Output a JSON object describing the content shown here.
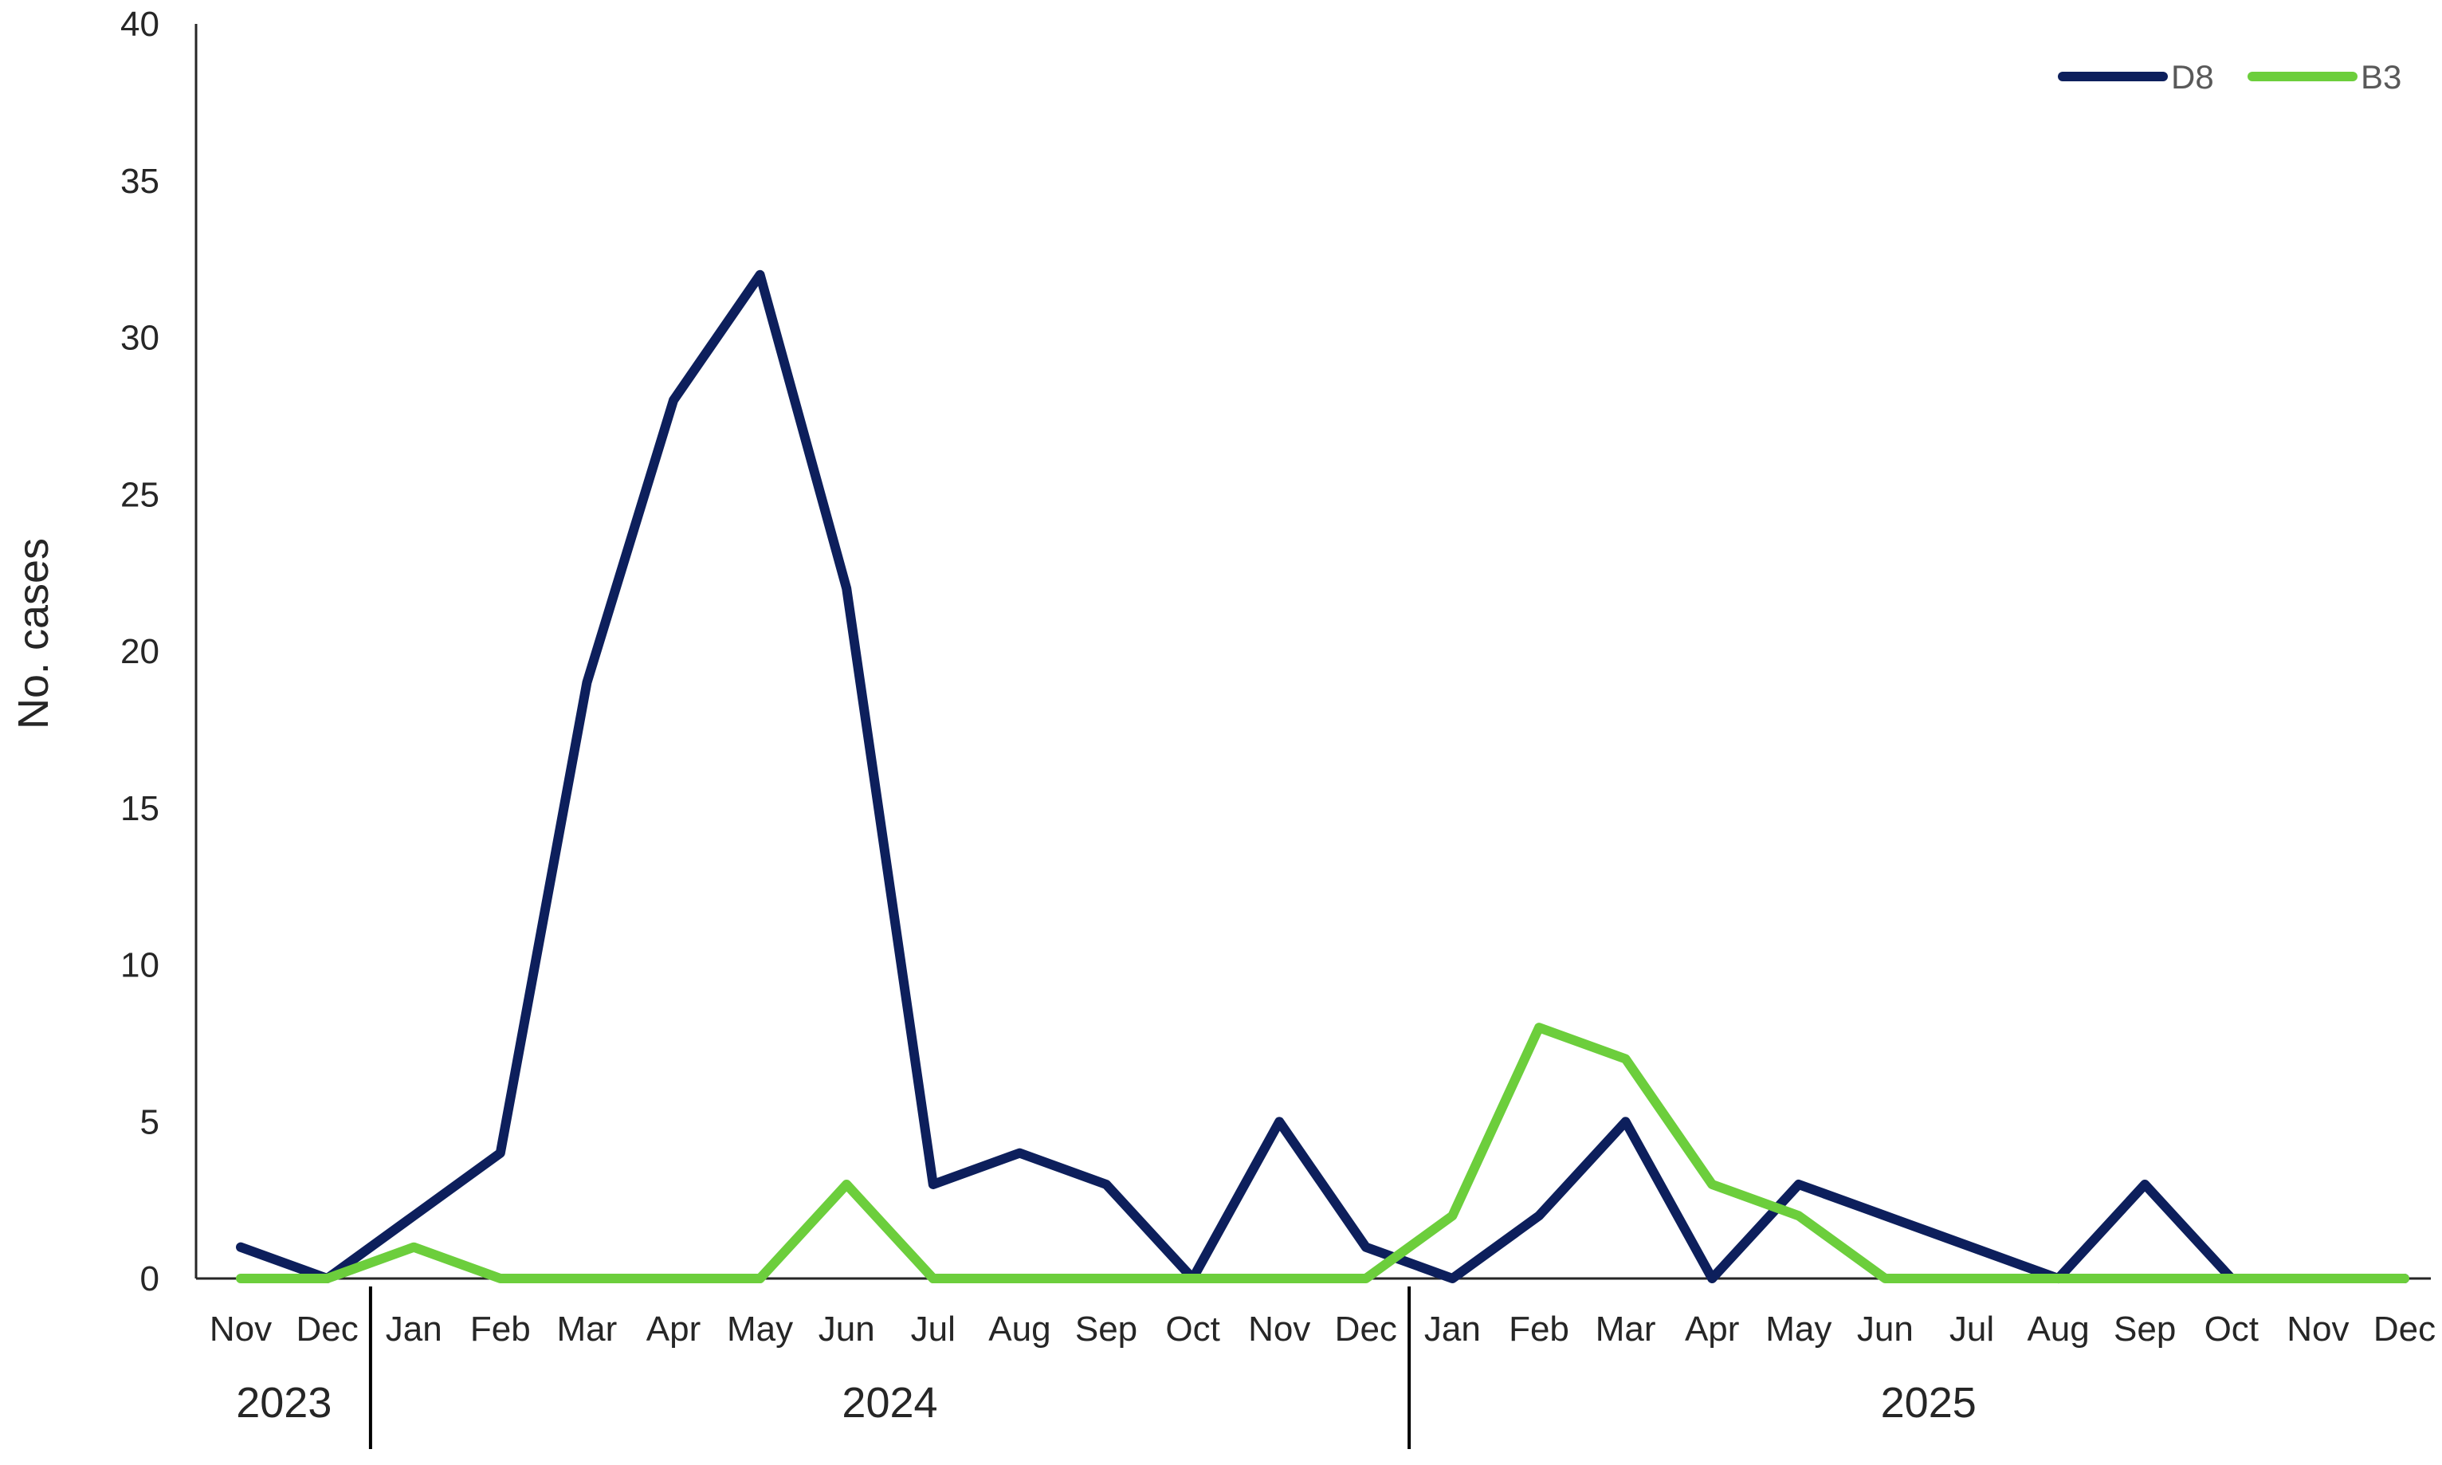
{
  "chart_data": {
    "type": "line",
    "title": "",
    "xlabel": "",
    "ylabel": "No. cases",
    "ylim": [
      0,
      40
    ],
    "yticks": [
      0,
      5,
      10,
      15,
      20,
      25,
      30,
      35,
      40
    ],
    "categories": [
      "Nov",
      "Dec",
      "Jan",
      "Feb",
      "Mar",
      "Apr",
      "May",
      "Jun",
      "Jul",
      "Aug",
      "Sep",
      "Oct",
      "Nov",
      "Dec",
      "Jan",
      "Feb",
      "Mar",
      "Apr",
      "May",
      "Jun",
      "Jul",
      "Aug",
      "Sep",
      "Oct",
      "Nov",
      "Dec"
    ],
    "year_groups": [
      {
        "label": "2023",
        "start": 0,
        "end": 1
      },
      {
        "label": "2024",
        "start": 2,
        "end": 13
      },
      {
        "label": "2025",
        "start": 14,
        "end": 25
      }
    ],
    "legend_position": "top-right",
    "grid": false,
    "series": [
      {
        "name": "D8",
        "color": "#0d1f5c",
        "values": [
          1,
          0,
          2,
          4,
          19,
          28,
          32,
          22,
          3,
          4,
          3,
          0,
          5,
          1,
          0,
          2,
          5,
          0,
          3,
          2,
          1,
          0,
          3,
          0,
          0,
          0
        ]
      },
      {
        "name": "B3",
        "color": "#6cce3c",
        "values": [
          0,
          0,
          1,
          0,
          0,
          0,
          0,
          3,
          0,
          0,
          0,
          0,
          0,
          0,
          2,
          8,
          7,
          3,
          2,
          0,
          0,
          0,
          0,
          0,
          0,
          0
        ]
      }
    ]
  }
}
